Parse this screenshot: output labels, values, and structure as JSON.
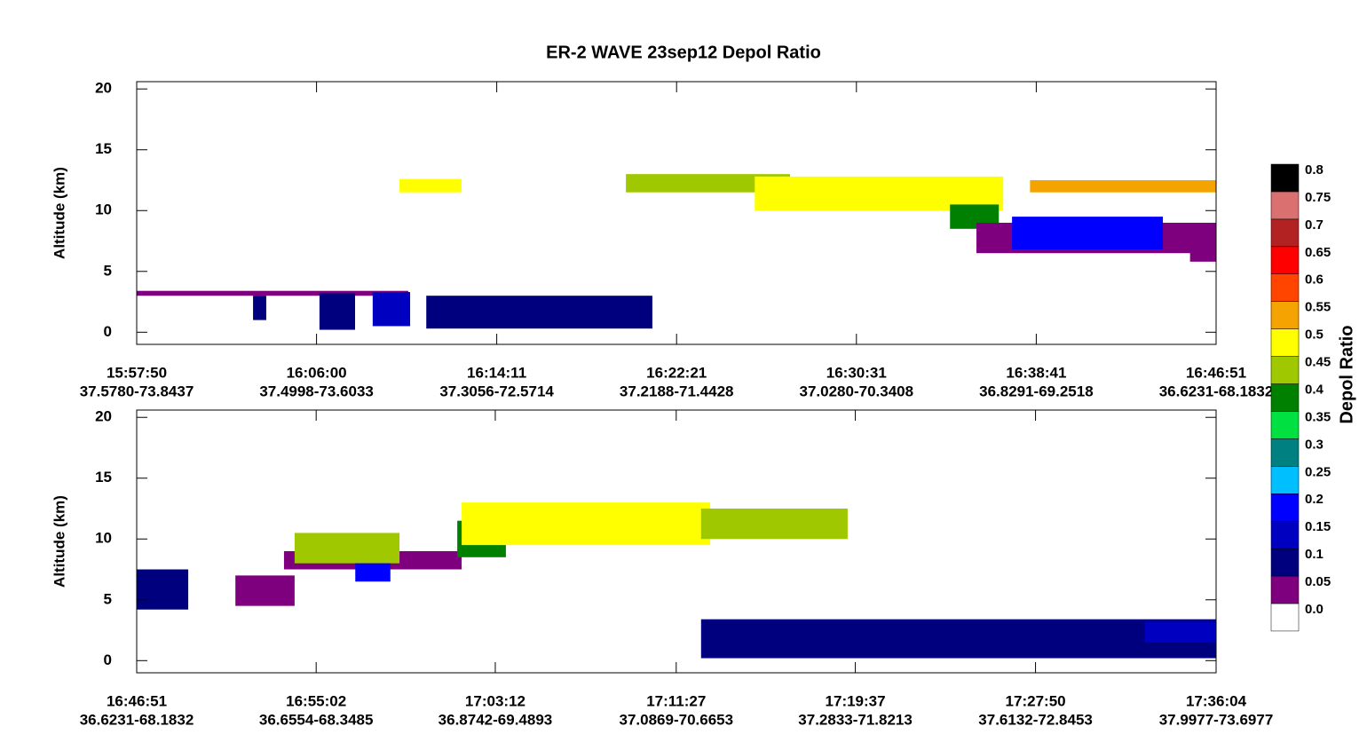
{
  "chart_data": [
    {
      "type": "heatmap",
      "title": "ER-2 WAVE 23sep12 Depol Ratio",
      "ylabel": "Altitude (km)",
      "xlim": [
        "15:57:50",
        "16:46:51"
      ],
      "xticks": [
        "15:57:50",
        "16:06:00",
        "16:14:11",
        "16:22:21",
        "16:30:31",
        "16:38:41",
        "16:46:51"
      ],
      "xtick_sublabels": [
        "37.5780-73.8437",
        "37.4998-73.6033",
        "37.3056-72.5714",
        "37.2188-71.4428",
        "37.0280-70.3408",
        "36.8291-69.2518",
        "36.6231-68.1832"
      ],
      "ylim": [
        -1,
        20.6
      ],
      "yticks": [
        0,
        5,
        10,
        15,
        20
      ],
      "cells": [
        {
          "x": [
            "15:57:50",
            "16:10:10"
          ],
          "y": [
            3,
            3.4
          ],
          "value": 0.02
        },
        {
          "x": [
            "16:03:07",
            "16:03:43"
          ],
          "y": [
            1,
            3
          ],
          "value": 0.07
        },
        {
          "x": [
            "16:06:08",
            "16:07:45"
          ],
          "y": [
            0.2,
            3.2
          ],
          "value": 0.08
        },
        {
          "x": [
            "16:08:33",
            "16:10:15"
          ],
          "y": [
            0.5,
            3.3
          ],
          "value": 0.1
        },
        {
          "x": [
            "16:10:59",
            "16:21:15"
          ],
          "y": [
            0.3,
            3
          ],
          "value": 0.08
        },
        {
          "x": [
            "16:09:46",
            "16:12:35"
          ],
          "y": [
            11.5,
            12.6
          ],
          "value": 0.45
        },
        {
          "x": [
            "16:20:03",
            "16:27:30"
          ],
          "y": [
            11.5,
            13
          ],
          "value": 0.42
        },
        {
          "x": [
            "16:25:54",
            "16:37:11"
          ],
          "y": [
            10,
            12.8
          ],
          "value": 0.48
        },
        {
          "x": [
            "16:34:46",
            "16:36:59"
          ],
          "y": [
            8.5,
            10.5
          ],
          "value": 0.38
        },
        {
          "x": [
            "16:35:58",
            "16:46:51"
          ],
          "y": [
            6.5,
            9
          ],
          "value": 0.03
        },
        {
          "x": [
            "16:37:35",
            "16:44:26"
          ],
          "y": [
            6.8,
            9.5
          ],
          "value": 0.15
        },
        {
          "x": [
            "16:38:24",
            "16:46:51"
          ],
          "y": [
            11.5,
            12.5
          ],
          "value": 0.5
        },
        {
          "x": [
            "16:45:40",
            "16:46:51"
          ],
          "y": [
            5.8,
            7
          ],
          "value": 0.02
        }
      ],
      "colorbar": {
        "title": "Depol Ratio",
        "ticks": [
          {
            "value": 0,
            "label": "0.0"
          },
          0.05,
          0.1,
          0.15,
          0.2,
          0.25,
          0.3,
          0.35,
          0.4,
          0.45,
          0.5,
          0.55,
          0.6,
          0.65,
          0.7,
          0.75,
          0.8
        ],
        "colors": [
          "#ffffff",
          "#7f007f",
          "#00007f",
          "#0000c0",
          "#0000ff",
          "#00bfff",
          "#008080",
          "#00e040",
          "#008000",
          "#a0c800",
          "#ffff00",
          "#f5a300",
          "#ff4500",
          "#ff0000",
          "#b22222",
          "#db7070",
          "#000000"
        ]
      }
    },
    {
      "type": "heatmap",
      "ylabel": "Altitude (km)",
      "xlim": [
        "16:46:51",
        "17:36:04"
      ],
      "xticks": [
        "16:46:51",
        "16:55:02",
        "17:03:12",
        "17:11:27",
        "17:19:37",
        "17:27:50",
        "17:36:04"
      ],
      "xtick_sublabels": [
        "36.6231-68.1832",
        "36.6554-68.3485",
        "36.8742-69.4893",
        "37.0869-70.6653",
        "37.2833-71.8213",
        "37.6132-72.8453",
        "37.9977-73.6977"
      ],
      "ylim": [
        -1,
        20.6
      ],
      "yticks": [
        0,
        5,
        10,
        15,
        20
      ],
      "cells": [
        {
          "x": [
            "16:46:51",
            "16:49:12"
          ],
          "y": [
            4.2,
            7.5
          ],
          "value": 0.05
        },
        {
          "x": [
            "16:51:21",
            "16:54:03"
          ],
          "y": [
            4.5,
            7
          ],
          "value": 0.03
        },
        {
          "x": [
            "16:53:34",
            "17:01:40"
          ],
          "y": [
            7.5,
            9
          ],
          "value": 0.02
        },
        {
          "x": [
            "16:54:03",
            "16:58:50"
          ],
          "y": [
            8,
            10.5
          ],
          "value": 0.4
        },
        {
          "x": [
            "16:56:49",
            "16:58:25"
          ],
          "y": [
            6.5,
            8
          ],
          "value": 0.15
        },
        {
          "x": [
            "17:01:28",
            "17:03:41"
          ],
          "y": [
            8.5,
            11.5
          ],
          "value": 0.35
        },
        {
          "x": [
            "17:01:40",
            "17:13:00"
          ],
          "y": [
            9.5,
            13
          ],
          "value": 0.47
        },
        {
          "x": [
            "17:12:35",
            "17:19:16"
          ],
          "y": [
            10,
            12.5
          ],
          "value": 0.42
        },
        {
          "x": [
            "17:12:35",
            "17:36:04"
          ],
          "y": [
            0.2,
            3.4
          ],
          "value": 0.07
        },
        {
          "x": [
            "17:32:49",
            "17:36:04"
          ],
          "y": [
            1.5,
            3.2
          ],
          "value": 0.12
        }
      ]
    }
  ]
}
